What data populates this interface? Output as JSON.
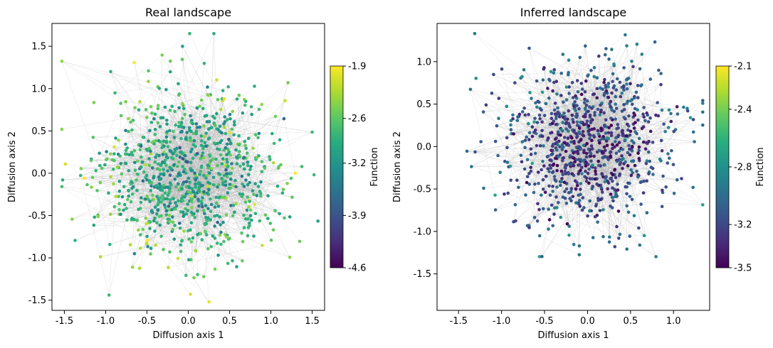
{
  "chart_data": [
    {
      "type": "scatter",
      "title": "Real landscape",
      "xlabel": "Diffusion axis 1",
      "ylabel": "Diffusion axis 2",
      "xlim": [
        -1.65,
        1.65
      ],
      "ylim": [
        -1.62,
        1.77
      ],
      "xticks": [
        "-1.5",
        "-1.0",
        "-0.5",
        "0.0",
        "0.5",
        "1.0",
        "1.5"
      ],
      "xtick_values": [
        -1.5,
        -1.0,
        -0.5,
        0.0,
        0.5,
        1.0,
        1.5
      ],
      "yticks": [
        "-1.5",
        "-1.0",
        "-0.5",
        "0.0",
        "0.5",
        "1.0",
        "1.5"
      ],
      "ytick_values": [
        -1.5,
        -1.0,
        -0.5,
        0.0,
        0.5,
        1.0,
        1.5
      ],
      "colorbar": {
        "label": "Function",
        "min": -4.6,
        "max": -1.9,
        "ticks": [
          "-1.9",
          "-2.6",
          "-3.2",
          "-3.9",
          "-4.6"
        ],
        "tick_values": [
          -1.9,
          -2.6,
          -3.2,
          -3.9,
          -4.6
        ],
        "colormap": "viridis"
      },
      "points": {
        "count": 900,
        "center": [
          0.0,
          0.0
        ],
        "spread": [
          0.55,
          0.5
        ],
        "value_mean": -3.05,
        "note_outer_points_brighter": true
      },
      "background_graph": {
        "edge_color": "#b0b0b0",
        "edges": 1400
      }
    },
    {
      "type": "scatter",
      "title": "Inferred landscape",
      "xlabel": "Diffusion axis 1",
      "ylabel": "Diffusion axis 2",
      "xlim": [
        -1.75,
        1.42
      ],
      "ylim": [
        -1.93,
        1.45
      ],
      "xticks": [
        "-1.5",
        "-1.0",
        "-0.5",
        "0.0",
        "0.5",
        "1.0"
      ],
      "xtick_values": [
        -1.5,
        -1.0,
        -0.5,
        0.0,
        0.5,
        1.0
      ],
      "yticks": [
        "-1.5",
        "-1.0",
        "-0.5",
        "0.0",
        "0.5",
        "1.0"
      ],
      "ytick_values": [
        -1.5,
        -1.0,
        -0.5,
        0.0,
        0.5,
        1.0
      ],
      "colorbar": {
        "label": "Function",
        "min": -3.5,
        "max": -2.1,
        "ticks": [
          "-2.1",
          "-2.4",
          "-2.8",
          "-3.2",
          "-3.5"
        ],
        "tick_values": [
          -2.1,
          -2.4,
          -2.8,
          -3.2,
          -3.5
        ],
        "colormap": "viridis"
      },
      "points": {
        "count": 900,
        "center": [
          0.0,
          0.0
        ],
        "spread": [
          0.5,
          0.5
        ],
        "value_mean": -3.25,
        "note_outer_points_brighter": true
      },
      "background_graph": {
        "edge_color": "#b0b0b0",
        "edges": 1400
      }
    }
  ]
}
